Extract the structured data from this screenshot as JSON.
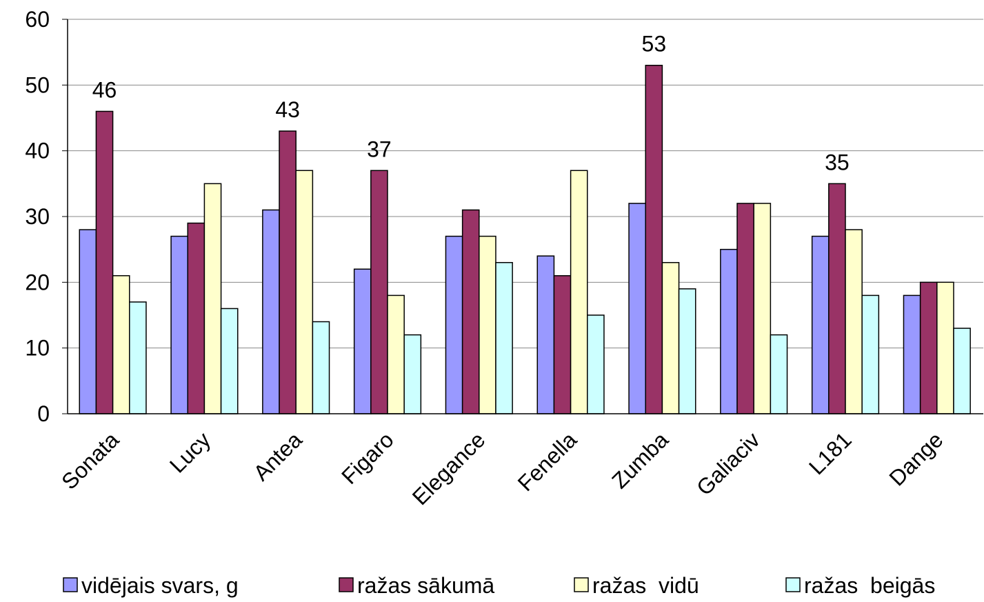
{
  "chart_data": {
    "type": "bar",
    "categories": [
      "Sonata",
      "Lucy",
      "Antea",
      "Figaro",
      "Elegance",
      "Fenella",
      "Zumba",
      "Galiaciv",
      "L181",
      "Dange"
    ],
    "series": [
      {
        "name": "vidējais svars, g",
        "color": "#9999ff",
        "values": [
          28,
          27,
          31,
          22,
          27,
          24,
          32,
          25,
          27,
          18
        ]
      },
      {
        "name": "ražas sākumā",
        "color": "#993366",
        "values": [
          46,
          29,
          43,
          37,
          31,
          21,
          53,
          32,
          35,
          20
        ],
        "value_labels": [
          "46",
          null,
          "43",
          "37",
          null,
          null,
          "53",
          null,
          "35",
          null
        ]
      },
      {
        "name": "ražas  vidū",
        "color": "#ffffcc",
        "values": [
          21,
          35,
          37,
          18,
          27,
          37,
          23,
          32,
          28,
          20
        ]
      },
      {
        "name": "ražas  beigās",
        "color": "#ccffff",
        "values": [
          17,
          16,
          14,
          12,
          23,
          15,
          19,
          12,
          18,
          13
        ]
      }
    ],
    "ylim": [
      0,
      60
    ],
    "yticks": [
      0,
      10,
      20,
      30,
      40,
      50,
      60
    ],
    "grid": true,
    "legend": "bottom"
  }
}
